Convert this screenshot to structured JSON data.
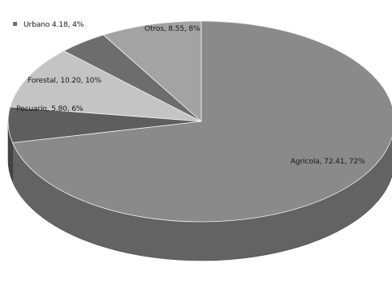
{
  "chart_data": {
    "type": "pie",
    "style": "3d-grayscale",
    "slices": [
      {
        "category": "Agricola",
        "value": 72.41,
        "percent": 72,
        "label": "Agricola, 72.41, 72%",
        "color": "#8a8a8a"
      },
      {
        "category": "Pecuario",
        "value": 5.8,
        "percent": 6,
        "label": "Pecuario, 5.80, 6%",
        "color": "#5e5e5e"
      },
      {
        "category": "Forestal",
        "value": 10.2,
        "percent": 10,
        "label": "Forestal, 10.20, 10%",
        "color": "#c4c4c4"
      },
      {
        "category": "Urbano",
        "value": 4.18,
        "percent": 4,
        "label": "Urbano 4.18, 4%",
        "color": "#6d6d6d"
      },
      {
        "category": "Otros",
        "value": 8.55,
        "percent": 8,
        "label": "Otros, 8.55, 8%",
        "color": "#a3a3a3"
      }
    ],
    "legend": {
      "position": "top-left",
      "entries": [
        "Urbano 4.18, 4%"
      ]
    }
  }
}
